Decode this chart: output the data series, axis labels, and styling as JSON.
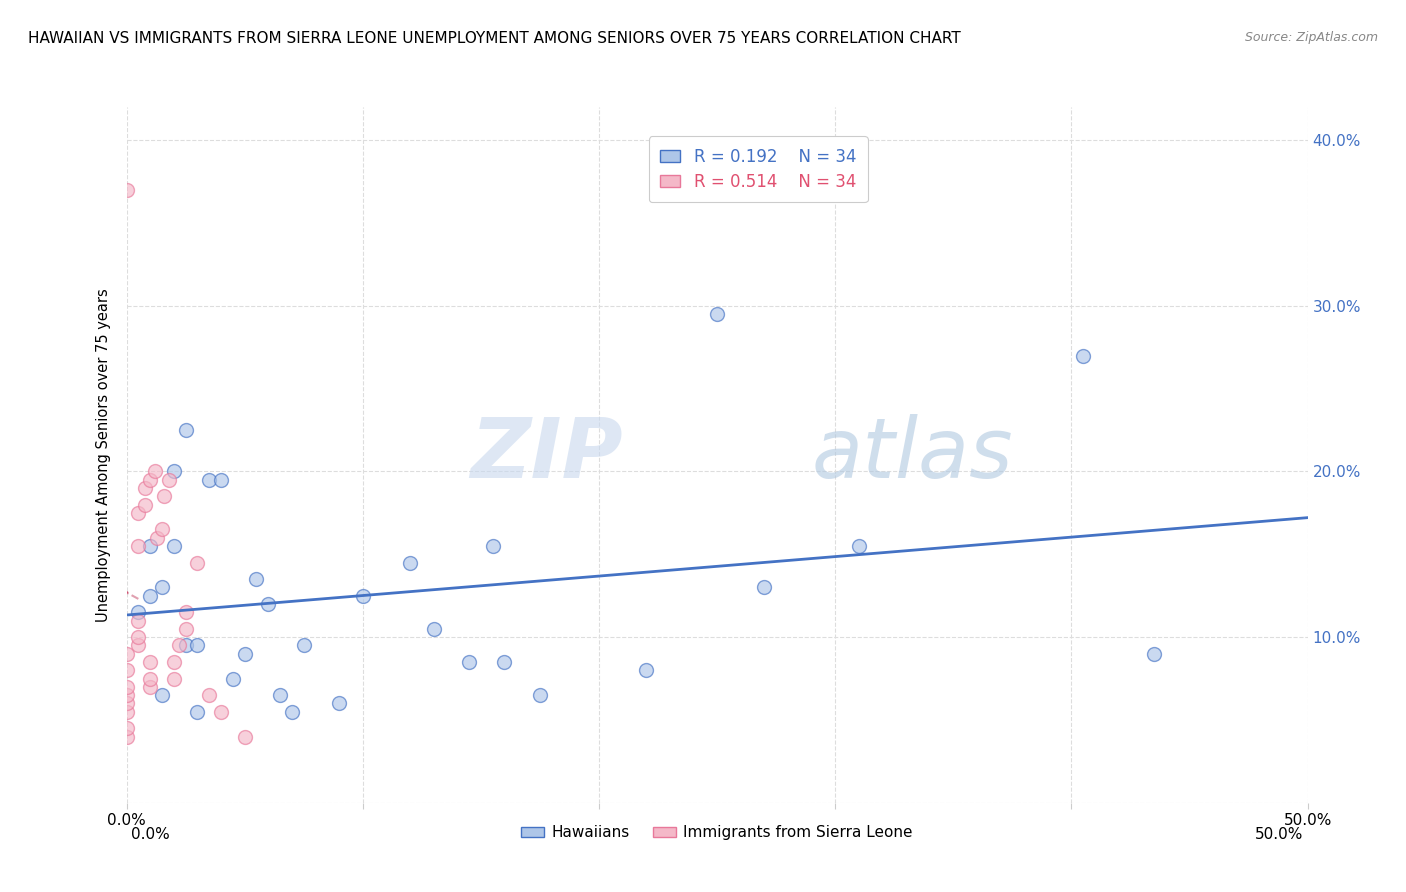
{
  "title": "HAWAIIAN VS IMMIGRANTS FROM SIERRA LEONE UNEMPLOYMENT AMONG SENIORS OVER 75 YEARS CORRELATION CHART",
  "source": "Source: ZipAtlas.com",
  "ylabel": "Unemployment Among Seniors over 75 years",
  "xlim": [
    0.0,
    0.5
  ],
  "ylim": [
    0.0,
    0.42
  ],
  "xticks": [
    0.0,
    0.1,
    0.2,
    0.3,
    0.4,
    0.5
  ],
  "yticks": [
    0.0,
    0.1,
    0.2,
    0.3,
    0.4
  ],
  "hawaiian_x": [
    0.005,
    0.01,
    0.01,
    0.015,
    0.015,
    0.02,
    0.02,
    0.025,
    0.025,
    0.03,
    0.03,
    0.035,
    0.04,
    0.045,
    0.05,
    0.055,
    0.06,
    0.065,
    0.07,
    0.075,
    0.09,
    0.1,
    0.12,
    0.13,
    0.145,
    0.155,
    0.16,
    0.175,
    0.22,
    0.25,
    0.27,
    0.31,
    0.405,
    0.435
  ],
  "hawaiian_y": [
    0.115,
    0.125,
    0.155,
    0.13,
    0.065,
    0.2,
    0.155,
    0.225,
    0.095,
    0.055,
    0.095,
    0.195,
    0.195,
    0.075,
    0.09,
    0.135,
    0.12,
    0.065,
    0.055,
    0.095,
    0.06,
    0.125,
    0.145,
    0.105,
    0.085,
    0.155,
    0.085,
    0.065,
    0.08,
    0.295,
    0.13,
    0.155,
    0.27,
    0.09
  ],
  "sierra_leone_x": [
    0.0,
    0.0,
    0.0,
    0.0,
    0.0,
    0.0,
    0.0,
    0.0,
    0.0,
    0.005,
    0.005,
    0.005,
    0.005,
    0.005,
    0.008,
    0.008,
    0.01,
    0.01,
    0.01,
    0.01,
    0.012,
    0.013,
    0.015,
    0.016,
    0.018,
    0.02,
    0.02,
    0.022,
    0.025,
    0.025,
    0.03,
    0.035,
    0.04,
    0.05
  ],
  "sierra_leone_y": [
    0.04,
    0.045,
    0.055,
    0.06,
    0.065,
    0.07,
    0.08,
    0.09,
    0.37,
    0.095,
    0.1,
    0.11,
    0.155,
    0.175,
    0.18,
    0.19,
    0.07,
    0.075,
    0.085,
    0.195,
    0.2,
    0.16,
    0.165,
    0.185,
    0.195,
    0.075,
    0.085,
    0.095,
    0.105,
    0.115,
    0.145,
    0.065,
    0.055,
    0.04
  ],
  "hawaiian_color": "#aec6e8",
  "hawaiian_edge_color": "#4472c4",
  "sierra_leone_color": "#f4b8c8",
  "sierra_leone_edge_color": "#e8789a",
  "trend_hawaiian_color": "#4472c4",
  "trend_sierra_leone_solid_color": "#d05070",
  "trend_sierra_leone_dash_color": "#e0a0b0",
  "R_hawaiian": "0.192",
  "N_hawaiian": "34",
  "R_sierra_leone": "0.514",
  "N_sierra_leone": "34",
  "watermark_zip": "ZIP",
  "watermark_atlas": "atlas",
  "legend_label_1": "Hawaiians",
  "legend_label_2": "Immigrants from Sierra Leone",
  "marker_size": 100,
  "alpha_scatter": 0.65,
  "grid_color": "#dddddd",
  "right_ytick_color": "#4472c4",
  "legend_R_color": "#4472c4",
  "legend_N_color": "#e05070"
}
